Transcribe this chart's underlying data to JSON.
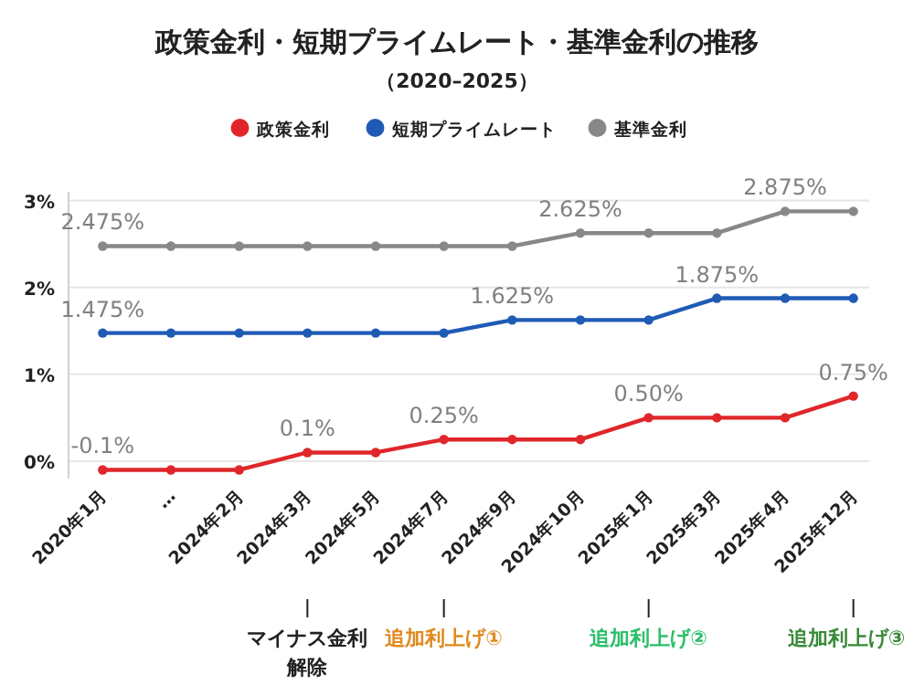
{
  "chart_data": {
    "type": "line",
    "title": "政策金利・短期プライムレート・基準金利の推移",
    "subtitle": "（2020–2025）",
    "categories": [
      "2020年1月",
      "…",
      "2024年2月",
      "2024年3月",
      "2024年5月",
      "2024年7月",
      "2024年9月",
      "2024年10月",
      "2025年1月",
      "2025年3月",
      "2025年4月",
      "2025年12月"
    ],
    "series": [
      {
        "name": "政策金利",
        "color": "#e0262a",
        "values": [
          -0.1,
          -0.1,
          -0.1,
          0.1,
          0.1,
          0.25,
          0.25,
          0.25,
          0.5,
          0.5,
          0.5,
          0.75
        ],
        "value_labels": [
          "-0.1%",
          null,
          null,
          "0.1%",
          null,
          "0.25%",
          null,
          null,
          "0.50%",
          null,
          null,
          "0.75%"
        ]
      },
      {
        "name": "短期プライムレート",
        "color": "#1f5bb5",
        "values": [
          1.475,
          1.475,
          1.475,
          1.475,
          1.475,
          1.475,
          1.625,
          1.625,
          1.625,
          1.875,
          1.875,
          1.875
        ],
        "value_labels": [
          "1.475%",
          null,
          null,
          null,
          null,
          null,
          "1.625%",
          null,
          null,
          "1.875%",
          null,
          null
        ]
      },
      {
        "name": "基準金利",
        "color": "#888888",
        "values": [
          2.475,
          2.475,
          2.475,
          2.475,
          2.475,
          2.475,
          2.475,
          2.625,
          2.625,
          2.625,
          2.875,
          2.875
        ],
        "value_labels": [
          "2.475%",
          null,
          null,
          null,
          null,
          null,
          null,
          "2.625%",
          null,
          null,
          "2.875%",
          null
        ]
      }
    ],
    "ylim": [
      -0.2,
      3.1
    ],
    "yticks": [
      {
        "value": 0,
        "label": "0%"
      },
      {
        "value": 1,
        "label": "1%"
      },
      {
        "value": 2,
        "label": "2%"
      },
      {
        "value": 3,
        "label": "3%"
      }
    ],
    "grid": "y",
    "legend": "top",
    "marker": "circle",
    "line_style": "solid",
    "annotations": [
      {
        "text": "マイナス金利解除",
        "x": "2024年3月"
      },
      {
        "text": "追加利上げ①",
        "x": "2024年7月"
      },
      {
        "text": "追加利上げ②",
        "x": "2025年1月"
      },
      {
        "text": "追加利上げ③",
        "x": "2025年12月"
      }
    ]
  }
}
